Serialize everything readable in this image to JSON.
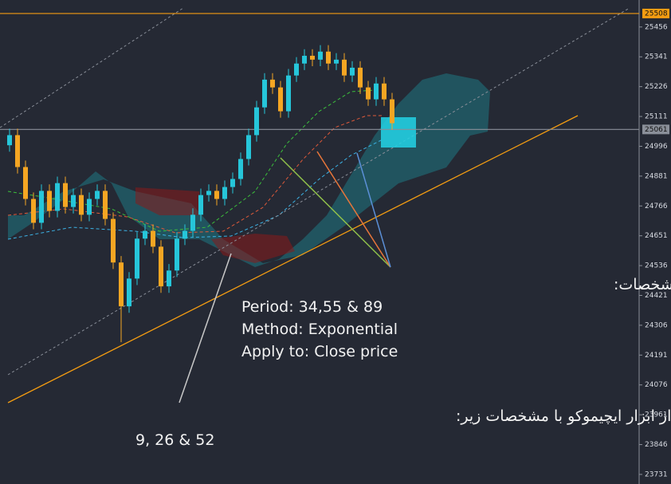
{
  "chart_data": {
    "type": "candlestick",
    "up_color": "#26c6da",
    "down_color": "#f5a623",
    "open": [
      25000,
      25039,
      24916,
      24793,
      24701,
      24824,
      24747,
      24854,
      24762,
      24808,
      24732,
      24793,
      24824,
      24716,
      24548,
      24379,
      24486,
      24640,
      24670,
      24609,
      24456,
      24517,
      24640,
      24670,
      24732,
      24808,
      24824,
      24793,
      24839,
      24870,
      24947,
      25039,
      25146,
      25253,
      25223,
      25131,
      25269,
      25315,
      25345,
      25330,
      25361,
      25315,
      25330,
      25269,
      25299,
      25223,
      25177,
      25238,
      25177
    ],
    "high": [
      25064,
      25064,
      24941,
      24818,
      24849,
      24849,
      24879,
      24879,
      24833,
      24833,
      24818,
      24849,
      24849,
      24741,
      24573,
      24511,
      24665,
      24695,
      24695,
      24634,
      24542,
      24665,
      24695,
      24757,
      24833,
      24849,
      24849,
      24864,
      24895,
      24972,
      25064,
      25171,
      25278,
      25278,
      25248,
      25294,
      25340,
      25370,
      25370,
      25386,
      25386,
      25355,
      25355,
      25324,
      25324,
      25248,
      25263,
      25263,
      25202
    ],
    "low": [
      24975,
      24891,
      24768,
      24676,
      24676,
      24722,
      24722,
      24737,
      24737,
      24707,
      24707,
      24768,
      24691,
      24523,
      24241,
      24354,
      24461,
      24615,
      24584,
      24431,
      24431,
      24492,
      24615,
      24645,
      24707,
      24783,
      24768,
      24768,
      24814,
      24845,
      24922,
      25014,
      25121,
      25198,
      25106,
      25106,
      25244,
      25290,
      25305,
      25305,
      25290,
      25290,
      25244,
      25244,
      25198,
      25152,
      25152,
      25152,
      25060
    ],
    "close": [
      25039,
      24916,
      24793,
      24701,
      24824,
      24747,
      24854,
      24762,
      24808,
      24732,
      24793,
      24824,
      24716,
      24548,
      24379,
      24486,
      24640,
      24670,
      24609,
      24456,
      24517,
      24640,
      24670,
      24732,
      24808,
      24824,
      24793,
      24839,
      24870,
      24947,
      25039,
      25146,
      25253,
      25223,
      25131,
      25269,
      25315,
      25345,
      25330,
      25361,
      25315,
      25330,
      25269,
      25299,
      25223,
      25177,
      25238,
      25177,
      25085
    ],
    "ylim": [
      23694,
      25560
    ],
    "yticks": [
      25456,
      25341,
      25226,
      25111,
      24996,
      24881,
      24766,
      24651,
      24536,
      24421,
      24306,
      24191,
      24076,
      23961,
      23846,
      23731
    ],
    "hlines": [
      {
        "value": 25508,
        "color": "#f39c12"
      },
      {
        "value": 25061,
        "color": "#8a8f99"
      }
    ],
    "annotations": [
      {
        "lines": [
          "سه میانگین متحرک (Moving Average) با مشخصات:",
          "Period: 34,55 & 89",
          "Method: Exponential",
          "Apply to: Close price"
        ]
      },
      {
        "lines": [
          "ابر کومو : استفاده از ابزار ایچیموکو با مشخصات زیر:",
          "9, 26 & 52"
        ]
      }
    ]
  }
}
